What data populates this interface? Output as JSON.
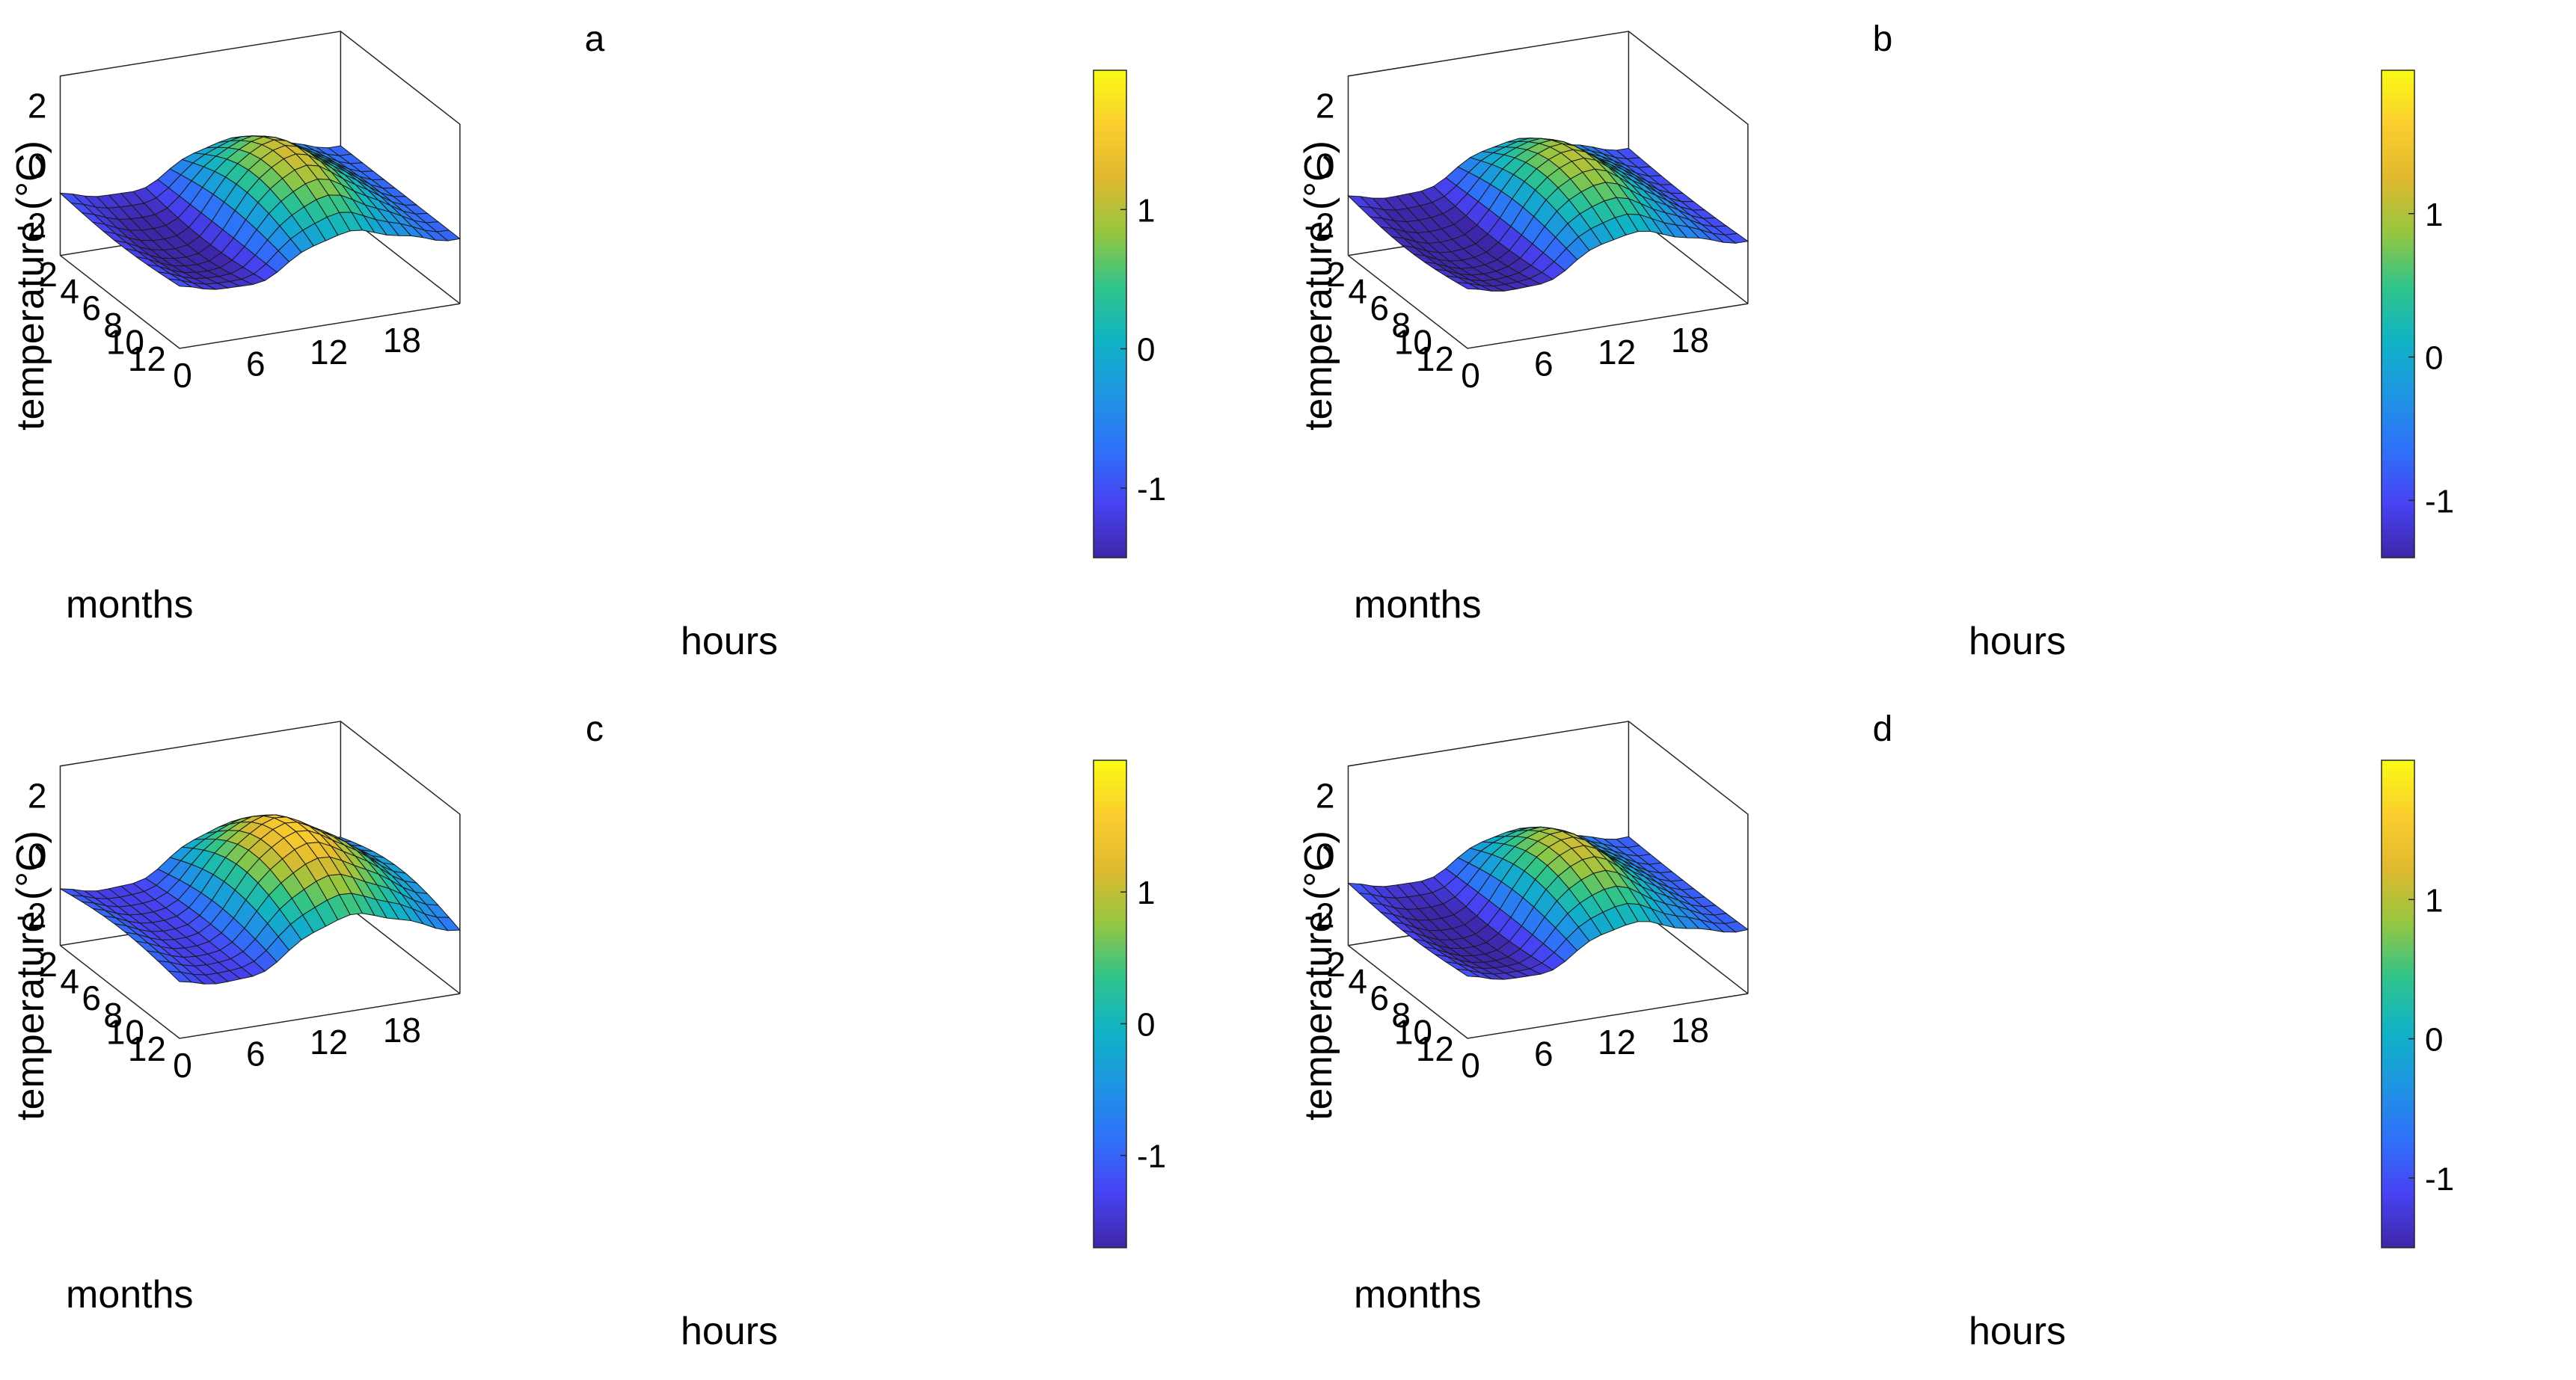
{
  "figure": {
    "panel_ids": [
      "a",
      "b",
      "c",
      "d"
    ]
  },
  "colorbar": {
    "colormap": [
      "#3e26a8",
      "#4743f3",
      "#2f71f9",
      "#1e95e2",
      "#10b3c6",
      "#30c48a",
      "#96c640",
      "#e0b92f",
      "#fbce2e",
      "#f9fb15"
    ]
  },
  "chart_data": [
    {
      "type": "surface",
      "title": "a",
      "xlabel": "hours",
      "ylabel": "months",
      "zlabel": "temperature (°C)",
      "x_ticks": [
        "0",
        "6",
        "12",
        "18"
      ],
      "y_ticks": [
        "2",
        "4",
        "6",
        "8",
        "10",
        "12"
      ],
      "z_ticks": [
        "2",
        "0",
        "-2"
      ],
      "xlim": [
        0,
        23
      ],
      "ylim": [
        1,
        12
      ],
      "zlim": [
        -3,
        3
      ],
      "colorbar_ticks": [
        "1",
        "0",
        "-1"
      ],
      "colorbar_tick_values": [
        1,
        0,
        -1
      ],
      "colorbar_range": [
        -1.5,
        2.0
      ],
      "model": {
        "winter_amp": 0.9,
        "summer_amp": 2.2,
        "peak_hour": 13.5,
        "width": 4.2,
        "seasonal_bias": -0.1,
        "baseline": -0.9
      }
    },
    {
      "type": "surface",
      "title": "b",
      "xlabel": "hours",
      "ylabel": "months",
      "zlabel": "temperature (°C)",
      "x_ticks": [
        "0",
        "6",
        "12",
        "18"
      ],
      "y_ticks": [
        "2",
        "4",
        "6",
        "8",
        "10",
        "12"
      ],
      "z_ticks": [
        "2",
        "0",
        "-2"
      ],
      "xlim": [
        0,
        23
      ],
      "ylim": [
        1,
        12
      ],
      "zlim": [
        -3,
        3
      ],
      "colorbar_ticks": [
        "1",
        "0",
        "-1"
      ],
      "colorbar_tick_values": [
        1,
        0,
        -1
      ],
      "colorbar_range": [
        -1.4,
        2.0
      ],
      "model": {
        "winter_amp": 1.0,
        "summer_amp": 2.3,
        "peak_hour": 13.0,
        "width": 4.5,
        "seasonal_bias": -0.2,
        "baseline": -1.0
      }
    },
    {
      "type": "surface",
      "title": "c",
      "xlabel": "hours",
      "ylabel": "months",
      "zlabel": "temperature (°C)",
      "x_ticks": [
        "0",
        "6",
        "12",
        "18"
      ],
      "y_ticks": [
        "2",
        "4",
        "6",
        "8",
        "10",
        "12"
      ],
      "z_ticks": [
        "2",
        "0",
        "-2"
      ],
      "xlim": [
        0,
        23
      ],
      "ylim": [
        1,
        12
      ],
      "zlim": [
        -3,
        3
      ],
      "colorbar_ticks": [
        "1",
        "0",
        "-1"
      ],
      "colorbar_tick_values": [
        1,
        0,
        -1
      ],
      "colorbar_range": [
        -1.7,
        2.0
      ],
      "model": {
        "winter_amp": 1.3,
        "summer_amp": 2.4,
        "peak_hour": 14.0,
        "width": 4.8,
        "seasonal_bias": 0.3,
        "baseline": -1.1
      }
    },
    {
      "type": "surface",
      "title": "d",
      "xlabel": "hours",
      "ylabel": "months",
      "zlabel": "temperature (°C)",
      "x_ticks": [
        "0",
        "6",
        "12",
        "18"
      ],
      "y_ticks": [
        "2",
        "4",
        "6",
        "8",
        "10",
        "12"
      ],
      "z_ticks": [
        "2",
        "0",
        "-2"
      ],
      "xlim": [
        0,
        23
      ],
      "ylim": [
        1,
        12
      ],
      "zlim": [
        -3,
        3
      ],
      "colorbar_ticks": [
        "1",
        "0",
        "-1"
      ],
      "colorbar_tick_values": [
        1,
        0,
        -1
      ],
      "colorbar_range": [
        -1.5,
        2.0
      ],
      "model": {
        "winter_amp": 0.9,
        "summer_amp": 2.2,
        "peak_hour": 13.0,
        "width": 4.0,
        "seasonal_bias": -0.1,
        "baseline": -0.9
      }
    }
  ]
}
